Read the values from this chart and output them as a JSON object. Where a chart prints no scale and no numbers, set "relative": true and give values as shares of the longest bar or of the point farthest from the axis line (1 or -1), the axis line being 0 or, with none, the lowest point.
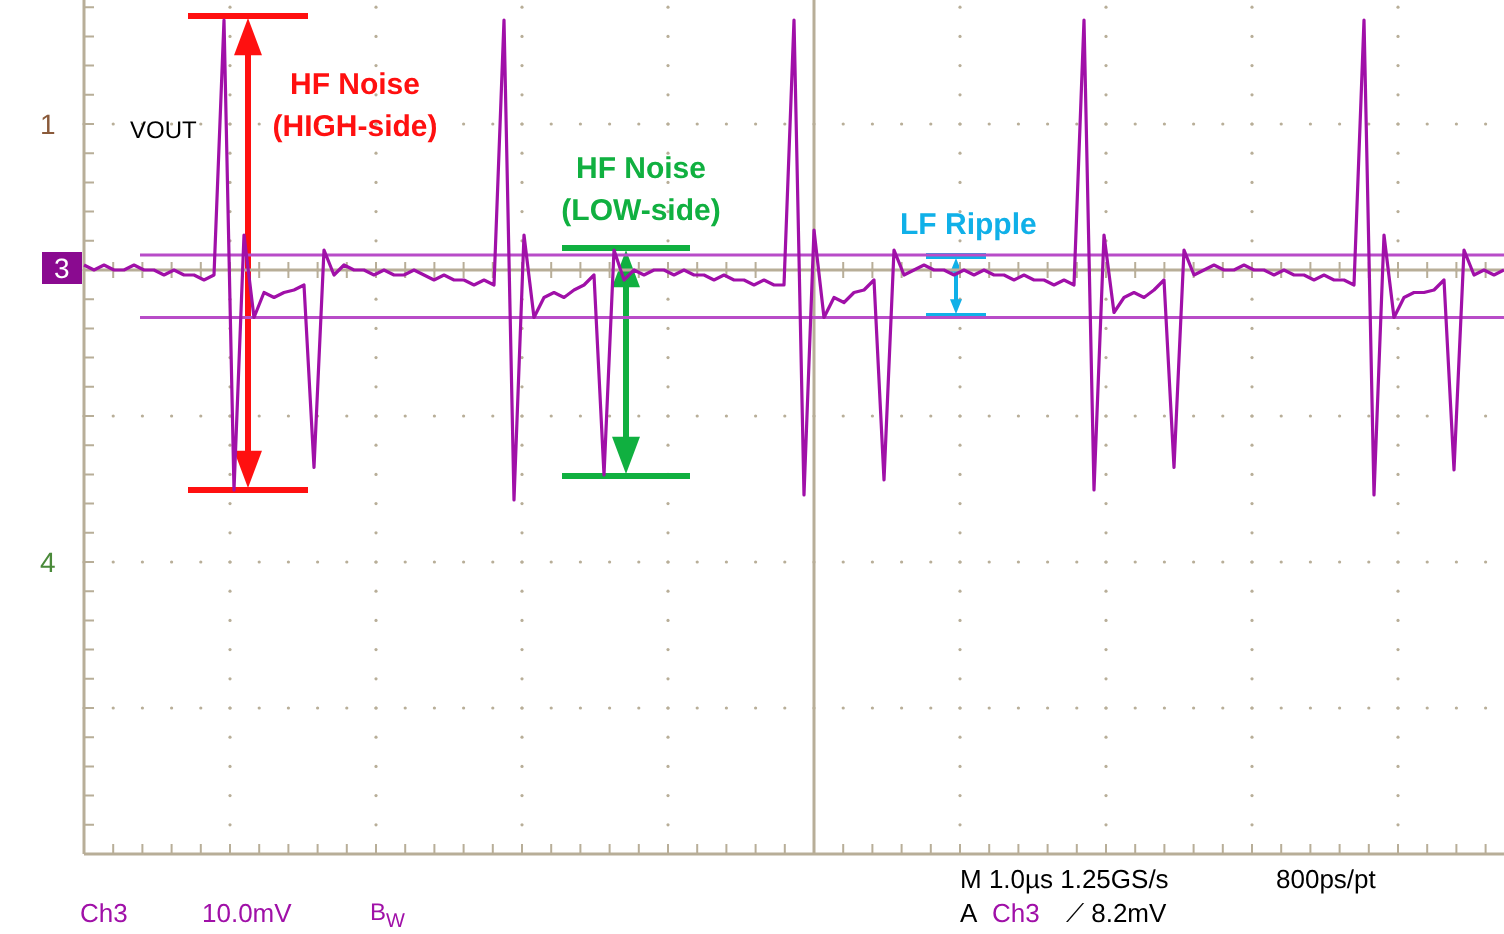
{
  "chart_data": {
    "type": "line",
    "relative": true,
    "categories": [
      null,
      null,
      null,
      null,
      null,
      null,
      null,
      null,
      null,
      null,
      null,
      null,
      null,
      null,
      null,
      null,
      null,
      null,
      null,
      null,
      null,
      null,
      null,
      null,
      null,
      null,
      null,
      null,
      null,
      null,
      null,
      null,
      null,
      null,
      null,
      null,
      null,
      null,
      null,
      null,
      null,
      null,
      null,
      null,
      null,
      null,
      null,
      null,
      null,
      null,
      null,
      null,
      null,
      null,
      null,
      null,
      null,
      null,
      null,
      null,
      null,
      null,
      null,
      null,
      null,
      null,
      null,
      null,
      null,
      null,
      null,
      null,
      null,
      null,
      null,
      null,
      null,
      null,
      null,
      null,
      null,
      null,
      null,
      null,
      null,
      null,
      null,
      null,
      null,
      null,
      null,
      null,
      null,
      null,
      null,
      null,
      null,
      null,
      null,
      null,
      null,
      null,
      null,
      null,
      null,
      null,
      null,
      null,
      null,
      null,
      null,
      null,
      null,
      null,
      null,
      null,
      null,
      null,
      null,
      null,
      null,
      null,
      null,
      null,
      null,
      null,
      null,
      null,
      null,
      null,
      null,
      null,
      null,
      null,
      null,
      null,
      null,
      null,
      null,
      null,
      null,
      null,
      null
    ],
    "series": [
      {
        "color": "#a010a8",
        "values": [
          0.02,
          0,
          0.02,
          0,
          0,
          0.02,
          0,
          0,
          -0.02,
          0,
          -0.02,
          -0.02,
          -0.04,
          -0.02,
          1,
          -0.88,
          0.14,
          -0.19,
          -0.09,
          -0.11,
          -0.09,
          -0.08,
          -0.06,
          -0.79,
          0.08,
          -0.02,
          0.02,
          0,
          0,
          -0.02,
          0,
          -0.02,
          -0.02,
          0,
          -0.02,
          -0.04,
          -0.02,
          -0.04,
          -0.04,
          -0.06,
          -0.04,
          -0.06,
          1,
          -0.92,
          0.14,
          -0.19,
          -0.11,
          -0.09,
          -0.11,
          -0.08,
          -0.06,
          -0.02,
          -0.82,
          0.08,
          -0.04,
          0,
          -0.02,
          0,
          0,
          -0.02,
          0,
          -0.02,
          -0.02,
          -0.04,
          -0.02,
          -0.04,
          -0.04,
          -0.06,
          -0.04,
          -0.06,
          -0.06,
          1,
          -0.9,
          0.16,
          -0.19,
          -0.11,
          -0.13,
          -0.09,
          -0.08,
          -0.04,
          -0.84,
          0.08,
          -0.02,
          0,
          0.02,
          0,
          0,
          -0.02,
          0,
          -0.02,
          0,
          -0.02,
          -0.02,
          -0.04,
          -0.02,
          -0.04,
          -0.04,
          -0.06,
          -0.04,
          -0.06,
          1,
          -0.88,
          0.14,
          -0.17,
          -0.11,
          -0.09,
          -0.11,
          -0.08,
          -0.04,
          -0.79,
          0.08,
          -0.02,
          0,
          0.02,
          0,
          0,
          0.02,
          0,
          0,
          -0.02,
          0,
          -0.02,
          -0.02,
          -0.04,
          -0.02,
          -0.04,
          -0.04,
          -0.06,
          1,
          -0.9,
          0.14,
          -0.19,
          -0.11,
          -0.09,
          -0.09,
          -0.08,
          -0.04,
          -0.8,
          0.08,
          -0.02,
          0,
          -0.02,
          0
        ]
      }
    ],
    "ref_lines": [
      {
        "axis": "y",
        "value": 0.06,
        "color": "#b84cc8"
      },
      {
        "axis": "y",
        "value": -0.19,
        "color": "#b84cc8"
      }
    ],
    "annotations": [
      "HF Noise (HIGH-side)",
      "HF Noise (LOW-side)",
      "LF Ripple",
      "VOUT",
      "1",
      "3",
      "4",
      "Ch3",
      "10.0mV",
      "B$_{W}$",
      "M 1.0µs 1.25GS/s",
      "800ps/pt",
      "A",
      "Ch3",
      "⟋ 8.2mV"
    ]
  }
}
